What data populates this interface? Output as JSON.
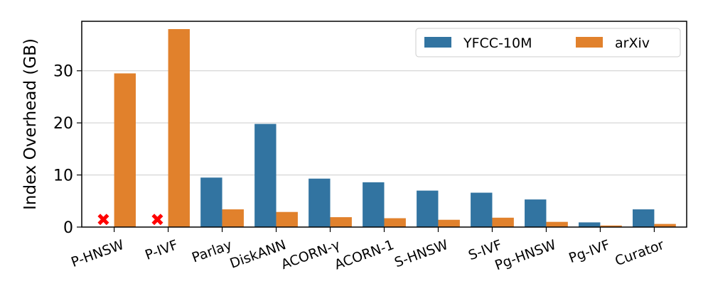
{
  "chart_data": {
    "type": "bar",
    "title": "",
    "xlabel": "",
    "ylabel": "Index Overhead (GB)",
    "ylim": [
      0,
      39.5
    ],
    "yticks": [
      0,
      10,
      20,
      30
    ],
    "grid": "horizontal",
    "legend_position": "top-right",
    "categories": [
      "P-HNSW",
      "P-IVF",
      "Parlay",
      "DiskANN",
      "ACORN-γ",
      "ACORN-1",
      "S-HNSW",
      "S-IVF",
      "Pg-HNSW",
      "Pg-IVF",
      "Curator"
    ],
    "series": [
      {
        "name": "YFCC-10M",
        "color": "#3274a1",
        "values": [
          null,
          null,
          9.5,
          19.8,
          9.3,
          8.6,
          7.0,
          6.6,
          5.3,
          0.9,
          3.4
        ]
      },
      {
        "name": "arXiv",
        "color": "#e1812c",
        "values": [
          29.5,
          38.0,
          3.4,
          2.9,
          1.9,
          1.7,
          1.4,
          1.8,
          1.0,
          0.3,
          0.6
        ]
      }
    ],
    "missing_marker": {
      "glyph": "✖",
      "color": "#ff0000",
      "series": "YFCC-10M",
      "categories": [
        "P-HNSW",
        "P-IVF"
      ]
    }
  }
}
